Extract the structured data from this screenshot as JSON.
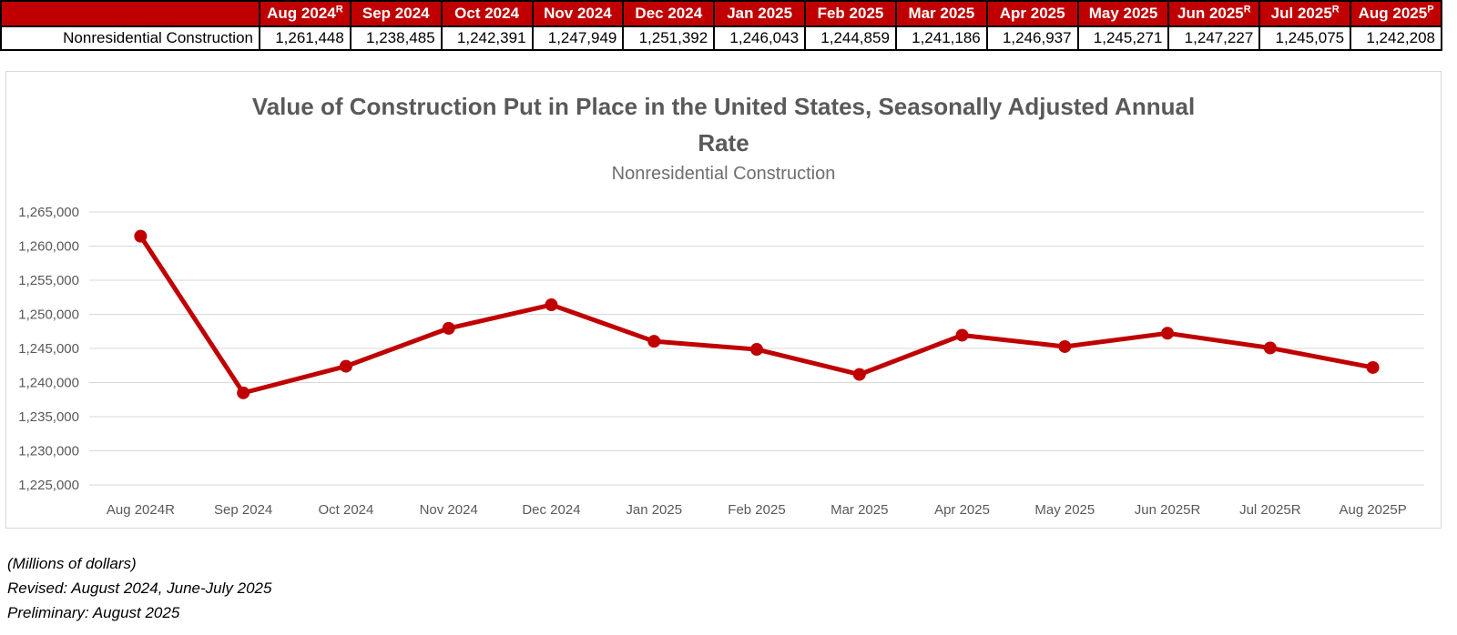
{
  "colors": {
    "accent_red": "#C00000",
    "grid": "#D9D9D9",
    "title_gray": "#595959",
    "axis_gray": "#595959"
  },
  "table": {
    "row_label": "Nonresidential Construction",
    "columns": [
      {
        "label": "Aug 2024",
        "suffix": "R",
        "value": "1,261,448"
      },
      {
        "label": "Sep 2024",
        "suffix": "",
        "value": "1,238,485"
      },
      {
        "label": "Oct 2024",
        "suffix": "",
        "value": "1,242,391"
      },
      {
        "label": "Nov 2024",
        "suffix": "",
        "value": "1,247,949"
      },
      {
        "label": "Dec 2024",
        "suffix": "",
        "value": "1,251,392"
      },
      {
        "label": "Jan 2025",
        "suffix": "",
        "value": "1,246,043"
      },
      {
        "label": "Feb 2025",
        "suffix": "",
        "value": "1,244,859"
      },
      {
        "label": "Mar 2025",
        "suffix": "",
        "value": "1,241,186"
      },
      {
        "label": "Apr 2025",
        "suffix": "",
        "value": "1,246,937"
      },
      {
        "label": "May 2025",
        "suffix": "",
        "value": "1,245,271"
      },
      {
        "label": "Jun 2025",
        "suffix": "R",
        "value": "1,247,227"
      },
      {
        "label": "Jul 2025",
        "suffix": "R",
        "value": "1,245,075"
      },
      {
        "label": "Aug 2025",
        "suffix": "P",
        "value": "1,242,208"
      }
    ]
  },
  "header": {
    "title_line1": "Value of Construction Put in Place in the United States, Seasonally Adjusted Annual",
    "title_line2": "Rate",
    "subtitle": "Nonresidential Construction"
  },
  "chart_data": {
    "type": "line",
    "title": "Value of Construction Put in Place in the United States, Seasonally Adjusted Annual Rate",
    "subtitle": "Nonresidential Construction",
    "categories": [
      "Aug 2024R",
      "Sep 2024",
      "Oct 2024",
      "Nov 2024",
      "Dec 2024",
      "Jan 2025",
      "Feb 2025",
      "Mar 2025",
      "Apr 2025",
      "May 2025",
      "Jun 2025R",
      "Jul 2025R",
      "Aug 2025P"
    ],
    "series": [
      {
        "name": "Nonresidential Construction",
        "values": [
          1261448,
          1238485,
          1242391,
          1247949,
          1251392,
          1246043,
          1244859,
          1241186,
          1246937,
          1245271,
          1247227,
          1245075,
          1242208
        ]
      }
    ],
    "ylim": [
      1225000,
      1265000
    ],
    "ytick_step": 5000,
    "xlabel": "",
    "ylabel": "",
    "grid": true,
    "legend": false,
    "line_color": "#C00000",
    "marker": "circle"
  },
  "notes": {
    "units": "(Millions of dollars)",
    "revised": "Revised: August 2024, June-July 2025",
    "preliminary": "Preliminary: August 2025"
  }
}
